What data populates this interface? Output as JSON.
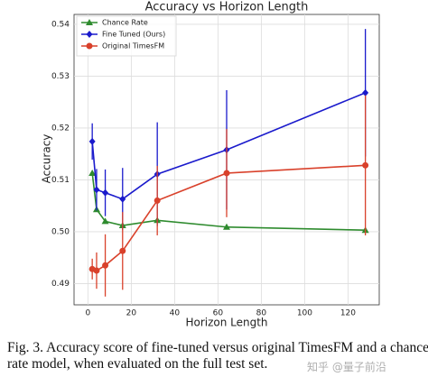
{
  "chart_data": {
    "type": "line",
    "title": "Accuracy vs Horizon Length",
    "x_label": "Horizon Length",
    "y_label": "Accuracy",
    "x": [
      2,
      4,
      8,
      16,
      32,
      64,
      128
    ],
    "series": [
      {
        "name": "Chance Rate",
        "color": "#2e8b2e",
        "marker": "triangle",
        "values": [
          0.5113,
          0.5043,
          0.502,
          0.5012,
          0.5022,
          0.5009,
          0.5003
        ]
      },
      {
        "name": "Fine Tuned (Ours)",
        "color": "#1a1acc",
        "marker": "diamond",
        "values": [
          0.5174,
          0.5081,
          0.5075,
          0.5063,
          0.5111,
          0.5158,
          0.5268
        ],
        "errors": [
          0.0035,
          0.004,
          0.0045,
          0.006,
          0.01,
          0.0115,
          0.0123
        ]
      },
      {
        "name": "Original TimesFM",
        "color": "#d9412b",
        "marker": "circle",
        "values": [
          0.4928,
          0.4925,
          0.4935,
          0.4963,
          0.506,
          0.5113,
          0.5128
        ],
        "errors": [
          0.002,
          0.0035,
          0.006,
          0.0075,
          0.0067,
          0.0085,
          0.0135
        ]
      }
    ],
    "xlim": [
      -6.4,
      134.4
    ],
    "xticks": [
      0,
      20,
      40,
      60,
      80,
      100,
      120
    ],
    "ylim": [
      0.4859,
      0.5419
    ],
    "yticks": [
      0.49,
      {
        "value": 0.5,
        "label": "0.50"
      },
      0.51,
      0.52,
      0.53,
      0.54
    ],
    "grid": true,
    "legend": "upper-left"
  },
  "caption": {
    "lines": [
      "Fig. 3.  Accuracy score of fine-tuned versus original TimesFM and a chance-",
      "rate model, when evaluated on the full test set."
    ]
  },
  "watermark": "知乎 @量子前沿"
}
